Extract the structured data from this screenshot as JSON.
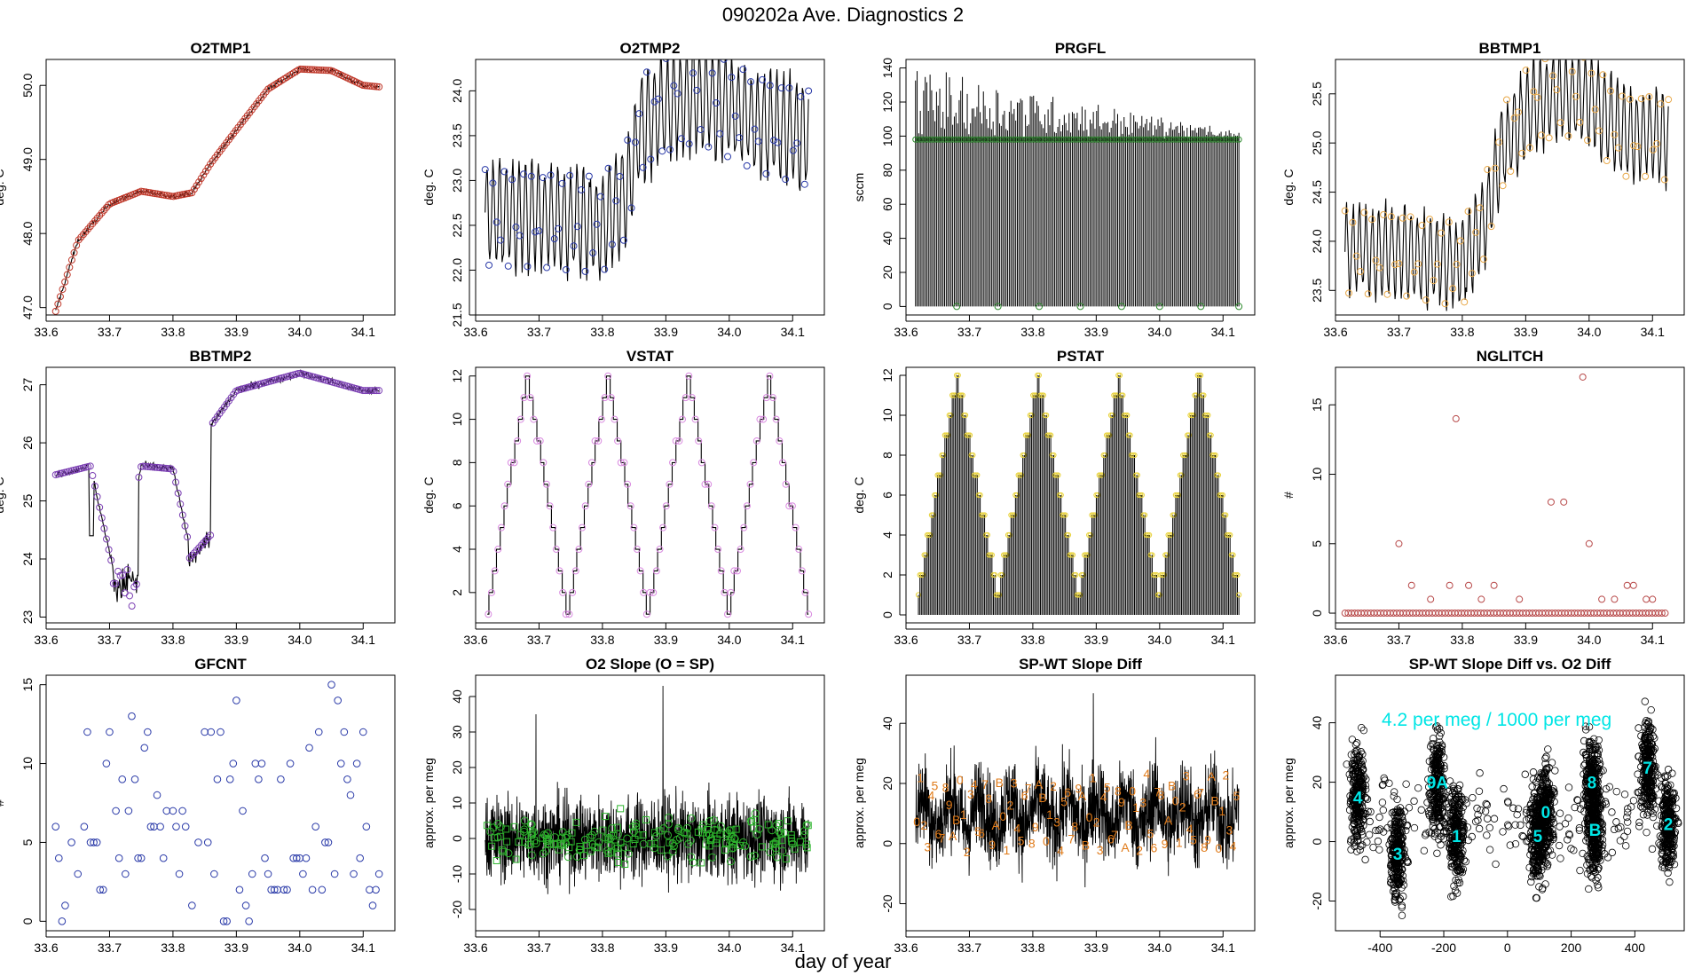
{
  "figure": {
    "title": "090202a   Ave. Diagnostics 2",
    "xlabel": "day of year"
  },
  "chart_data": [
    {
      "id": "O2TMP1",
      "type": "line",
      "title": "O2TMP1",
      "xlabel": "",
      "ylabel": "deg. C",
      "xlim": [
        33.6,
        34.15
      ],
      "ylim": [
        46.9,
        50.35
      ],
      "xticks": [
        33.6,
        33.7,
        33.8,
        33.9,
        34.0,
        34.1
      ],
      "yticks": [
        47.0,
        48.0,
        49.0,
        50.0
      ],
      "yfmt": 1,
      "line_color": "#000000",
      "point_color": "#c0392b",
      "marker": "circle",
      "series": [
        {
          "name": "O2TMP1",
          "x": [
            33.615,
            33.65,
            33.7,
            33.75,
            33.8,
            33.83,
            33.86,
            33.9,
            33.95,
            34.0,
            34.05,
            34.1,
            34.125
          ],
          "y": [
            46.95,
            47.9,
            48.4,
            48.57,
            48.5,
            48.55,
            48.95,
            49.4,
            49.95,
            50.22,
            50.2,
            50.0,
            49.98
          ]
        }
      ]
    },
    {
      "id": "O2TMP2",
      "type": "line",
      "title": "O2TMP2",
      "xlabel": "",
      "ylabel": "deg. C",
      "xlim": [
        33.6,
        34.15
      ],
      "ylim": [
        21.5,
        24.35
      ],
      "xticks": [
        33.6,
        33.7,
        33.8,
        33.9,
        34.0,
        34.1
      ],
      "yticks": [
        21.5,
        22.0,
        22.5,
        23.0,
        23.5,
        24.0
      ],
      "yfmt": 1,
      "line_color": "#000000",
      "point_color": "#2a3aa8",
      "marker": "circle",
      "series": [
        {
          "name": "O2TMP2",
          "x": [
            33.615,
            33.7,
            33.8,
            33.84,
            33.86,
            33.9,
            33.95,
            34.0,
            34.05,
            34.1,
            34.125
          ],
          "y": [
            22.6,
            22.6,
            22.5,
            22.9,
            23.6,
            23.8,
            23.95,
            23.8,
            23.65,
            23.55,
            23.5
          ]
        }
      ]
    },
    {
      "id": "PRGFL",
      "type": "bar",
      "title": "PRGFL",
      "xlabel": "",
      "ylabel": "sccm",
      "xlim": [
        33.6,
        34.15
      ],
      "ylim": [
        -5,
        145
      ],
      "xticks": [
        33.6,
        33.7,
        33.8,
        33.9,
        34.0,
        34.1
      ],
      "yticks": [
        0,
        20,
        40,
        60,
        80,
        100,
        120,
        140
      ],
      "yfmt": 0,
      "line_color": "#000000",
      "point_color": "#2e8b2e",
      "marker": "circle",
      "series": [
        {
          "name": "PRGFL",
          "x": [
            33.615,
            33.7,
            33.8,
            33.9,
            34.0,
            34.1,
            34.125
          ],
          "y": [
            98,
            98,
            98,
            98,
            98,
            98,
            98
          ]
        }
      ]
    },
    {
      "id": "BBTMP1",
      "type": "line",
      "title": "BBTMP1",
      "xlabel": "",
      "ylabel": "deg. C",
      "xlim": [
        33.6,
        34.15
      ],
      "ylim": [
        23.25,
        25.85
      ],
      "xticks": [
        33.6,
        33.7,
        33.8,
        33.9,
        34.0,
        34.1
      ],
      "yticks": [
        23.5,
        24.0,
        24.5,
        25.0,
        25.5
      ],
      "yfmt": 1,
      "line_color": "#000000",
      "point_color": "#e8a94a",
      "marker": "circle",
      "series": [
        {
          "name": "BBTMP1",
          "x": [
            33.615,
            33.7,
            33.8,
            33.84,
            33.86,
            33.9,
            33.95,
            34.0,
            34.05,
            34.1,
            34.125
          ],
          "y": [
            23.9,
            23.9,
            23.75,
            24.3,
            24.9,
            25.3,
            25.5,
            25.45,
            25.1,
            25.1,
            25.05
          ]
        }
      ]
    },
    {
      "id": "BBTMP2",
      "type": "line",
      "title": "BBTMP2",
      "xlabel": "",
      "ylabel": "deg. C",
      "xlim": [
        33.6,
        34.15
      ],
      "ylim": [
        22.9,
        27.3
      ],
      "xticks": [
        33.6,
        33.7,
        33.8,
        33.9,
        34.0,
        34.1
      ],
      "yticks": [
        23,
        24,
        25,
        26,
        27
      ],
      "yfmt": 0,
      "line_color": "#000000",
      "point_color": "#7b3fb3",
      "marker": "circle",
      "series": [
        {
          "name": "BBTMP2",
          "x": [
            33.615,
            33.67,
            33.71,
            33.75,
            33.8,
            33.83,
            33.86,
            33.9,
            34.0,
            34.1,
            34.125
          ],
          "y": [
            25.45,
            25.6,
            23.6,
            25.6,
            25.55,
            24.0,
            26.3,
            26.9,
            27.2,
            26.9,
            26.9
          ]
        }
      ]
    },
    {
      "id": "VSTAT",
      "type": "step",
      "title": "VSTAT",
      "xlabel": "",
      "ylabel": "deg. C",
      "xlim": [
        33.6,
        34.15
      ],
      "ylim": [
        0.6,
        12.4
      ],
      "xticks": [
        33.6,
        33.7,
        33.8,
        33.9,
        34.0,
        34.1
      ],
      "yticks": [
        2,
        4,
        6,
        8,
        10,
        12
      ],
      "yfmt": 0,
      "line_color": "#000000",
      "point_color": "#d98ae0",
      "marker": "circle",
      "series": [
        {
          "name": "VSTAT",
          "cycle_start": 33.618,
          "cycle_length": 0.127,
          "min": 1,
          "max": 12,
          "cycles": 4
        }
      ]
    },
    {
      "id": "PSTAT",
      "type": "bar",
      "title": "PSTAT",
      "xlabel": "",
      "ylabel": "deg. C",
      "xlim": [
        33.6,
        34.15
      ],
      "ylim": [
        -0.4,
        12.4
      ],
      "xticks": [
        33.6,
        33.7,
        33.8,
        33.9,
        34.0,
        34.1
      ],
      "yticks": [
        0,
        2,
        4,
        6,
        8,
        10,
        12
      ],
      "yfmt": 0,
      "line_color": "#000000",
      "point_color": "#e8d23a",
      "marker": "circle",
      "series": [
        {
          "name": "PSTAT",
          "cycle_start": 33.618,
          "cycle_length": 0.127,
          "min": 1,
          "max": 12,
          "cycles": 4
        }
      ]
    },
    {
      "id": "NGLITCH",
      "type": "scatter",
      "title": "NGLITCH",
      "xlabel": "",
      "ylabel": "#",
      "xlim": [
        33.6,
        34.15
      ],
      "ylim": [
        -0.7,
        17.7
      ],
      "xticks": [
        33.6,
        33.7,
        33.8,
        33.9,
        34.0,
        34.1
      ],
      "yticks": [
        0,
        5,
        10,
        15
      ],
      "yfmt": 0,
      "point_color": "#b84a4a",
      "marker": "circle",
      "series": [
        {
          "name": "NGLITCH",
          "x": [
            33.7,
            33.72,
            33.75,
            33.78,
            33.79,
            33.81,
            33.83,
            33.85,
            33.89,
            33.94,
            33.96,
            33.99,
            34.0,
            34.02,
            34.04,
            34.06,
            34.07,
            34.09,
            34.1
          ],
          "y": [
            5,
            2,
            1,
            2,
            14,
            2,
            1,
            2,
            1,
            8,
            8,
            17,
            5,
            1,
            1,
            2,
            2,
            1,
            1
          ]
        }
      ]
    },
    {
      "id": "GFCNT",
      "type": "scatter",
      "title": "GFCNT",
      "xlabel": "",
      "ylabel": "#",
      "xlim": [
        33.6,
        34.15
      ],
      "ylim": [
        -0.6,
        15.6
      ],
      "xticks": [
        33.6,
        33.7,
        33.8,
        33.9,
        34.0,
        34.1
      ],
      "yticks": [
        0,
        5,
        10,
        15
      ],
      "yfmt": 0,
      "point_color": "#2a3aa8",
      "marker": "circle",
      "series": [
        {
          "name": "GFCNT",
          "x": [
            33.615,
            33.62,
            33.625,
            33.63,
            33.64,
            33.65,
            33.66,
            33.665,
            33.67,
            33.675,
            33.68,
            33.685,
            33.69,
            33.695,
            33.7,
            33.71,
            33.715,
            33.72,
            33.725,
            33.73,
            33.735,
            33.74,
            33.745,
            33.75,
            33.755,
            33.76,
            33.765,
            33.77,
            33.775,
            33.78,
            33.785,
            33.79,
            33.8,
            33.805,
            33.81,
            33.815,
            33.82,
            33.83,
            33.84,
            33.85,
            33.855,
            33.86,
            33.865,
            33.87,
            33.875,
            33.88,
            33.885,
            33.89,
            33.895,
            33.9,
            33.905,
            33.91,
            33.915,
            33.92,
            33.925,
            33.93,
            33.935,
            33.94,
            33.945,
            33.95,
            33.955,
            33.96,
            33.965,
            33.97,
            33.975,
            33.98,
            33.985,
            33.99,
            33.995,
            34.0,
            34.005,
            34.01,
            34.015,
            34.02,
            34.025,
            34.03,
            34.035,
            34.04,
            34.045,
            34.05,
            34.055,
            34.06,
            34.065,
            34.07,
            34.075,
            34.08,
            34.085,
            34.09,
            34.095,
            34.1,
            34.105,
            34.11,
            34.115,
            34.12,
            34.125
          ],
          "y": [
            6,
            4,
            0,
            1,
            5,
            3,
            6,
            12,
            5,
            5,
            5,
            2,
            2,
            10,
            12,
            7,
            4,
            9,
            3,
            7,
            13,
            9,
            4,
            4,
            11,
            12,
            6,
            6,
            8,
            6,
            4,
            7,
            7,
            6,
            3,
            7,
            6,
            1,
            5,
            12,
            5,
            12,
            3,
            9,
            12,
            0,
            0,
            9,
            10,
            14,
            2,
            7,
            1,
            0,
            3,
            10,
            9,
            10,
            4,
            3,
            2,
            2,
            2,
            9,
            2,
            2,
            10,
            4,
            4,
            4,
            3,
            4,
            11,
            2,
            6,
            12,
            2,
            5,
            5,
            15,
            3,
            14,
            10,
            12,
            9,
            8,
            3,
            10,
            4,
            12,
            6,
            2,
            1,
            2,
            3
          ]
        }
      ]
    },
    {
      "id": "O2SLOPE",
      "type": "line",
      "title": "O2 Slope (O = SP)",
      "xlabel": "",
      "ylabel": "approx. per meg",
      "xlim": [
        33.6,
        34.15
      ],
      "ylim": [
        -26,
        46
      ],
      "xticks": [
        33.6,
        33.7,
        33.8,
        33.9,
        34.0,
        34.1
      ],
      "yticks": [
        -20,
        -10,
        0,
        10,
        20,
        30,
        40
      ],
      "yfmt": 0,
      "line_color": "#000000",
      "point_color": "#2db52d",
      "marker": "circle",
      "series": [
        {
          "name": "O2 Slope",
          "x": [
            33.615,
            33.7,
            33.8,
            33.9,
            34.0,
            34.1,
            34.125
          ],
          "y": [
            0,
            0,
            0,
            0,
            0,
            0,
            0
          ]
        }
      ]
    },
    {
      "id": "SPWT",
      "type": "line",
      "title": "SP-WT Slope Diff",
      "xlabel": "",
      "ylabel": "approx. per meg",
      "xlim": [
        33.6,
        34.15
      ],
      "ylim": [
        -29,
        56
      ],
      "xticks": [
        33.6,
        33.7,
        33.8,
        33.9,
        34.0,
        34.1
      ],
      "yticks": [
        -20,
        0,
        20,
        40
      ],
      "yfmt": 0,
      "line_color": "#000000",
      "point_color": "#e07b1a",
      "marker": "digit",
      "series": [
        {
          "name": "SP-WT",
          "x": [
            33.615,
            33.7,
            33.8,
            33.9,
            34.0,
            34.1,
            34.125
          ],
          "y": [
            10,
            10,
            10,
            10,
            10,
            10,
            10
          ]
        }
      ]
    },
    {
      "id": "SPWTvsO2",
      "type": "scatter",
      "title": "SP-WT Slope Diff vs. O2 Diff",
      "xlabel": "",
      "ylabel": "approx. per meg",
      "xlim": [
        -540,
        555
      ],
      "ylim": [
        -30,
        56
      ],
      "xticks": [
        -400,
        -200,
        0,
        200,
        400
      ],
      "yticks": [
        -20,
        0,
        20,
        40
      ],
      "yfmt": 0,
      "point_color": "#000000",
      "marker": "circle",
      "annotation": "4.2 per meg / 1000 per meg",
      "clusters": [
        {
          "label": "4",
          "x": -470,
          "y": 15
        },
        {
          "label": "3",
          "x": -345,
          "y": -4
        },
        {
          "label": "9A",
          "x": -220,
          "y": 20
        },
        {
          "label": "1",
          "x": -160,
          "y": 2
        },
        {
          "label": "5",
          "x": 95,
          "y": 2
        },
        {
          "label": "0",
          "x": 120,
          "y": 10
        },
        {
          "label": "8",
          "x": 265,
          "y": 20
        },
        {
          "label": "B",
          "x": 275,
          "y": 4
        },
        {
          "label": "7",
          "x": 440,
          "y": 25
        },
        {
          "label": "2",
          "x": 505,
          "y": 6
        }
      ]
    }
  ]
}
